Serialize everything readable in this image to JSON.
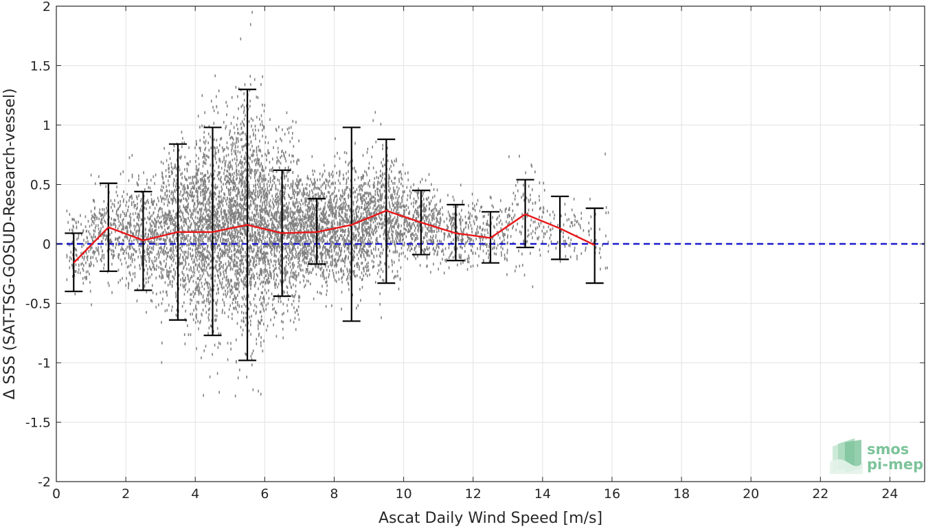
{
  "chart_data": {
    "type": "scatter",
    "xlabel": "Ascat Daily Wind Speed [m/s]",
    "ylabel": "Δ SSS (SAT-TSG-GOSUD-Research-vessel)",
    "xlim": [
      0,
      25
    ],
    "ylim": [
      -2,
      2
    ],
    "x_ticks": [
      0,
      2,
      4,
      6,
      8,
      10,
      12,
      14,
      16,
      18,
      20,
      22,
      24
    ],
    "y_ticks": [
      -2,
      -1.5,
      -1,
      -0.5,
      0,
      0.5,
      1,
      1.5,
      2
    ],
    "x_tick_labels": [
      "0",
      "2",
      "4",
      "6",
      "8",
      "10",
      "12",
      "14",
      "16",
      "18",
      "20",
      "22",
      "24"
    ],
    "y_tick_labels": [
      "-2",
      "-1.5",
      "-1",
      "-0.5",
      "0",
      "0.5",
      "1",
      "1.5",
      "2"
    ],
    "grid": true,
    "series": [
      {
        "kind": "errorbar",
        "color": "#000000",
        "x": [
          0.5,
          1.5,
          2.5,
          3.5,
          4.5,
          5.5,
          6.5,
          7.5,
          8.5,
          9.5,
          10.5,
          11.5,
          12.5,
          13.5,
          14.5,
          15.5
        ],
        "upper": [
          0.09,
          0.51,
          0.44,
          0.84,
          0.98,
          1.3,
          0.62,
          0.38,
          0.98,
          0.88,
          0.45,
          0.33,
          0.27,
          0.54,
          0.4,
          0.3
        ],
        "lower": [
          -0.4,
          -0.23,
          -0.39,
          -0.64,
          -0.77,
          -0.98,
          -0.44,
          -0.17,
          -0.65,
          -0.33,
          -0.09,
          -0.14,
          -0.16,
          -0.03,
          -0.13,
          -0.33
        ]
      },
      {
        "kind": "line",
        "color": "#e8191b",
        "x": [
          0.5,
          1.5,
          2.5,
          3.5,
          4.5,
          5.5,
          6.5,
          7.5,
          8.5,
          9.5,
          10.5,
          11.5,
          12.5,
          13.5,
          14.5,
          15.5
        ],
        "values": [
          -0.16,
          0.14,
          0.03,
          0.1,
          0.1,
          0.16,
          0.09,
          0.1,
          0.16,
          0.28,
          0.18,
          0.09,
          0.05,
          0.25,
          0.13,
          -0.01
        ]
      },
      {
        "kind": "reference-line",
        "color": "#1a1acd",
        "style": "dashed",
        "y": 0
      },
      {
        "kind": "scatter-cloud",
        "color": "#808080",
        "bins": [
          {
            "x": [
              0.3,
              1.0
            ],
            "center": -0.05,
            "spread": 0.28,
            "count": 120
          },
          {
            "x": [
              1.0,
              2.0
            ],
            "center": 0.1,
            "spread": 0.32,
            "count": 260
          },
          {
            "x": [
              2.0,
              3.0
            ],
            "center": 0.05,
            "spread": 0.4,
            "count": 420
          },
          {
            "x": [
              3.0,
              4.0
            ],
            "center": 0.1,
            "spread": 0.6,
            "count": 700
          },
          {
            "x": [
              4.0,
              5.0
            ],
            "center": 0.12,
            "spread": 0.75,
            "count": 1100
          },
          {
            "x": [
              5.0,
              6.0
            ],
            "center": 0.18,
            "spread": 0.85,
            "count": 1300
          },
          {
            "x": [
              6.0,
              7.0
            ],
            "center": 0.12,
            "spread": 0.6,
            "count": 1000
          },
          {
            "x": [
              7.0,
              8.0
            ],
            "center": 0.12,
            "spread": 0.4,
            "count": 800
          },
          {
            "x": [
              8.0,
              9.0
            ],
            "center": 0.15,
            "spread": 0.45,
            "count": 700
          },
          {
            "x": [
              9.0,
              10.0
            ],
            "center": 0.22,
            "spread": 0.45,
            "count": 550
          },
          {
            "x": [
              10.0,
              11.0
            ],
            "center": 0.18,
            "spread": 0.28,
            "count": 350
          },
          {
            "x": [
              11.0,
              12.0
            ],
            "center": 0.1,
            "spread": 0.25,
            "count": 220
          },
          {
            "x": [
              12.0,
              13.0
            ],
            "center": 0.08,
            "spread": 0.22,
            "count": 150
          },
          {
            "x": [
              13.0,
              14.0
            ],
            "center": 0.2,
            "spread": 0.35,
            "count": 110
          },
          {
            "x": [
              14.0,
              15.0
            ],
            "center": 0.1,
            "spread": 0.3,
            "count": 70
          },
          {
            "x": [
              15.0,
              15.9
            ],
            "center": 0.05,
            "spread": 0.3,
            "count": 40
          }
        ]
      }
    ]
  },
  "logo": {
    "line1": "smos",
    "line2": "pi-mep",
    "color": "#7cc39a"
  }
}
